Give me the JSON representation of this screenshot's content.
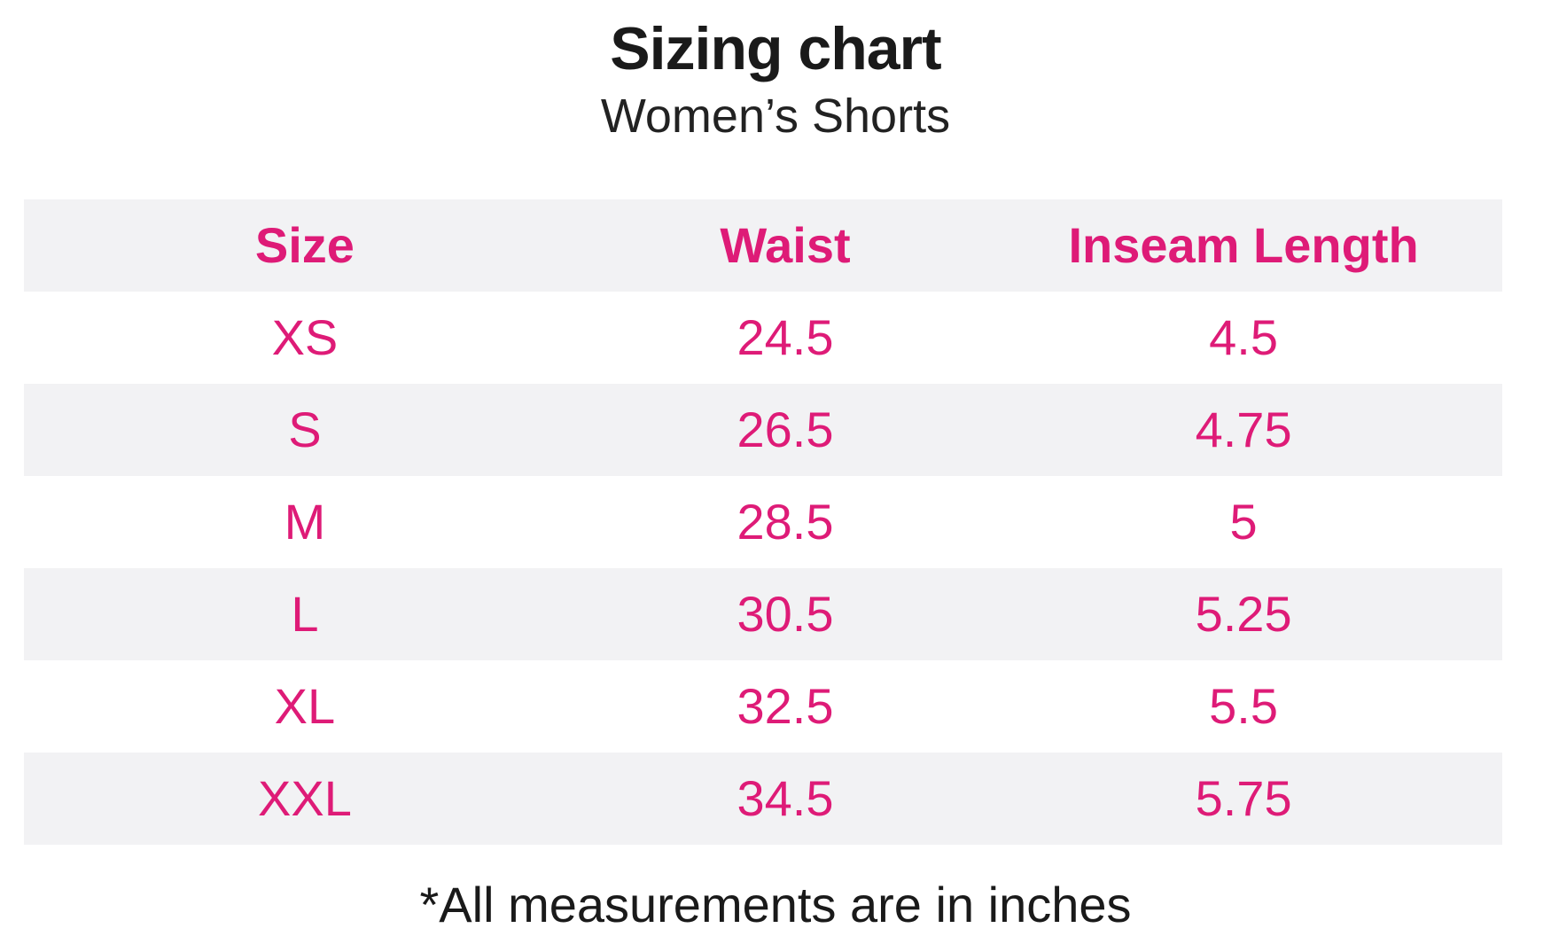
{
  "page": {
    "title": "Sizing chart",
    "subtitle": "Women’s Shorts",
    "footnote": "*All measurements are in inches"
  },
  "table": {
    "columns": [
      "Size",
      "Waist",
      "Inseam Length"
    ],
    "rows": [
      {
        "size": "XS",
        "waist": "24.5",
        "inseam": "4.5"
      },
      {
        "size": "S",
        "waist": "26.5",
        "inseam": "4.75"
      },
      {
        "size": "M",
        "waist": "28.5",
        "inseam": "5"
      },
      {
        "size": "L",
        "waist": "30.5",
        "inseam": "5.25"
      },
      {
        "size": "XL",
        "waist": "32.5",
        "inseam": "5.5"
      },
      {
        "size": "XXL",
        "waist": "34.5",
        "inseam": "5.75"
      }
    ]
  },
  "colors": {
    "accent_pink": "#de1b77",
    "row_stripe_gray": "#f2f2f4",
    "text_black": "#1a1a1a",
    "background": "#ffffff"
  },
  "chart_data": {
    "type": "table",
    "title": "Sizing chart",
    "subtitle": "Women’s Shorts",
    "columns": [
      "Size",
      "Waist",
      "Inseam Length"
    ],
    "units": "inches",
    "rows": [
      [
        "XS",
        24.5,
        4.5
      ],
      [
        "S",
        26.5,
        4.75
      ],
      [
        "M",
        28.5,
        5
      ],
      [
        "L",
        30.5,
        5.25
      ],
      [
        "XL",
        32.5,
        5.5
      ],
      [
        "XXL",
        34.5,
        5.75
      ]
    ],
    "note": "*All measurements are in inches",
    "layout_hints": {
      "header_style": "bold pink on light gray",
      "row_striping": "white / light gray alternating",
      "alignment": "center"
    }
  }
}
